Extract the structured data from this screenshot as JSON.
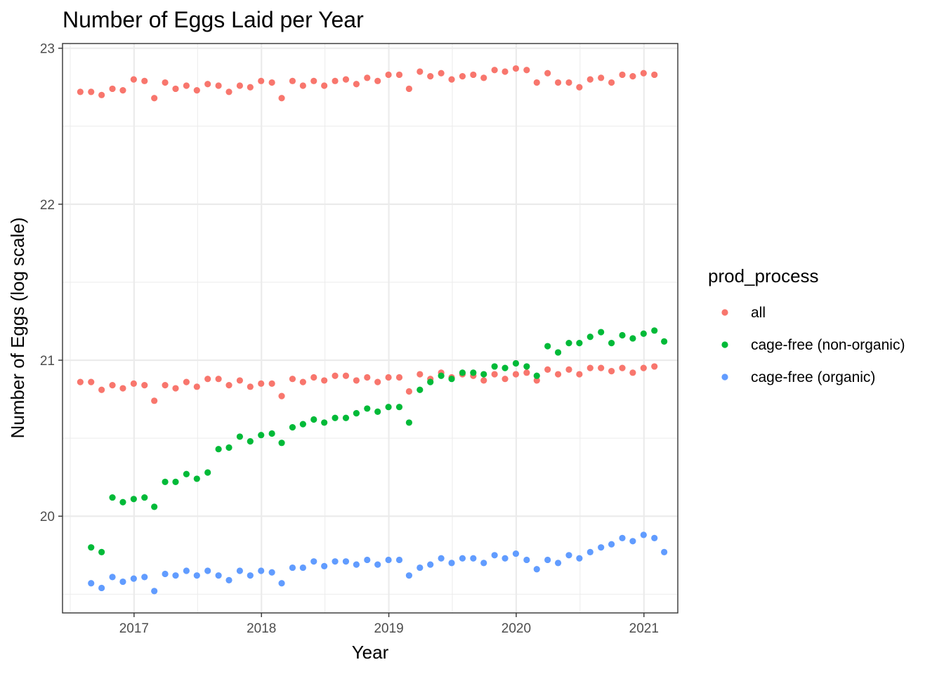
{
  "chart_data": {
    "type": "scatter",
    "title": "Number of Eggs Laid per Year",
    "xlabel": "Year",
    "ylabel": "Number of Eggs (log scale)",
    "x_ticks": [
      "2017",
      "2018",
      "2019",
      "2020",
      "2021"
    ],
    "y_ticks": [
      "20",
      "21",
      "22",
      "23"
    ],
    "xlim": [
      "2016-06-10",
      "2021-04-08"
    ],
    "ylim": [
      19.38,
      23.03
    ],
    "grid": true,
    "legend": {
      "title": "prod_process",
      "position": "right",
      "entries": [
        "all",
        "cage-free (non-organic)",
        "cage-free (organic)"
      ]
    },
    "series": [
      {
        "name": "all",
        "color": "#F8766D",
        "points": [
          [
            "2016-07-31",
            22.72
          ],
          [
            "2016-08-31",
            22.72
          ],
          [
            "2016-09-30",
            22.7
          ],
          [
            "2016-10-31",
            22.74
          ],
          [
            "2016-11-30",
            22.73
          ],
          [
            "2016-12-31",
            22.8
          ],
          [
            "2017-01-31",
            22.79
          ],
          [
            "2017-02-28",
            22.68
          ],
          [
            "2017-03-31",
            22.78
          ],
          [
            "2017-04-30",
            22.74
          ],
          [
            "2017-05-31",
            22.76
          ],
          [
            "2017-06-30",
            22.73
          ],
          [
            "2017-07-31",
            22.77
          ],
          [
            "2017-08-31",
            22.76
          ],
          [
            "2017-09-30",
            22.72
          ],
          [
            "2017-10-31",
            22.76
          ],
          [
            "2017-11-30",
            22.75
          ],
          [
            "2017-12-31",
            22.79
          ],
          [
            "2018-01-31",
            22.78
          ],
          [
            "2018-02-28",
            22.68
          ],
          [
            "2018-03-31",
            22.79
          ],
          [
            "2018-04-30",
            22.76
          ],
          [
            "2018-05-31",
            22.79
          ],
          [
            "2018-06-30",
            22.76
          ],
          [
            "2018-07-31",
            22.79
          ],
          [
            "2018-08-31",
            22.8
          ],
          [
            "2018-09-30",
            22.77
          ],
          [
            "2018-10-31",
            22.81
          ],
          [
            "2018-11-30",
            22.79
          ],
          [
            "2018-12-31",
            22.83
          ],
          [
            "2019-01-31",
            22.83
          ],
          [
            "2019-02-28",
            22.74
          ],
          [
            "2019-03-31",
            22.85
          ],
          [
            "2019-04-30",
            22.82
          ],
          [
            "2019-05-31",
            22.84
          ],
          [
            "2019-06-30",
            22.8
          ],
          [
            "2019-07-31",
            22.82
          ],
          [
            "2019-08-31",
            22.83
          ],
          [
            "2019-09-30",
            22.81
          ],
          [
            "2019-10-31",
            22.86
          ],
          [
            "2019-11-30",
            22.85
          ],
          [
            "2019-12-31",
            22.87
          ],
          [
            "2020-01-31",
            22.86
          ],
          [
            "2020-02-29",
            22.78
          ],
          [
            "2020-03-31",
            22.84
          ],
          [
            "2020-04-30",
            22.78
          ],
          [
            "2020-05-31",
            22.78
          ],
          [
            "2020-06-30",
            22.75
          ],
          [
            "2020-07-31",
            22.8
          ],
          [
            "2020-08-31",
            22.81
          ],
          [
            "2020-09-30",
            22.78
          ],
          [
            "2020-10-31",
            22.83
          ],
          [
            "2020-11-30",
            22.82
          ],
          [
            "2020-12-31",
            22.84
          ],
          [
            "2021-01-31",
            22.83
          ],
          [
            "2016-07-31",
            20.86
          ],
          [
            "2016-08-31",
            20.86
          ],
          [
            "2016-09-30",
            20.81
          ],
          [
            "2016-10-31",
            20.84
          ],
          [
            "2016-11-30",
            20.82
          ],
          [
            "2016-12-31",
            20.85
          ],
          [
            "2017-01-31",
            20.84
          ],
          [
            "2017-02-28",
            20.74
          ],
          [
            "2017-03-31",
            20.84
          ],
          [
            "2017-04-30",
            20.82
          ],
          [
            "2017-05-31",
            20.86
          ],
          [
            "2017-06-30",
            20.83
          ],
          [
            "2017-07-31",
            20.88
          ],
          [
            "2017-08-31",
            20.88
          ],
          [
            "2017-09-30",
            20.84
          ],
          [
            "2017-10-31",
            20.87
          ],
          [
            "2017-11-30",
            20.83
          ],
          [
            "2017-12-31",
            20.85
          ],
          [
            "2018-01-31",
            20.85
          ],
          [
            "2018-02-28",
            20.77
          ],
          [
            "2018-03-31",
            20.88
          ],
          [
            "2018-04-30",
            20.86
          ],
          [
            "2018-05-31",
            20.89
          ],
          [
            "2018-06-30",
            20.87
          ],
          [
            "2018-07-31",
            20.9
          ],
          [
            "2018-08-31",
            20.9
          ],
          [
            "2018-09-30",
            20.87
          ],
          [
            "2018-10-31",
            20.89
          ],
          [
            "2018-11-30",
            20.86
          ],
          [
            "2018-12-31",
            20.89
          ],
          [
            "2019-01-31",
            20.89
          ],
          [
            "2019-02-28",
            20.8
          ],
          [
            "2019-03-31",
            20.91
          ],
          [
            "2019-04-30",
            20.88
          ],
          [
            "2019-05-31",
            20.92
          ],
          [
            "2019-06-30",
            20.89
          ],
          [
            "2019-07-31",
            20.91
          ],
          [
            "2019-08-31",
            20.9
          ],
          [
            "2019-09-30",
            20.87
          ],
          [
            "2019-10-31",
            20.91
          ],
          [
            "2019-11-30",
            20.88
          ],
          [
            "2019-12-31",
            20.91
          ],
          [
            "2020-01-31",
            20.92
          ],
          [
            "2020-02-29",
            20.87
          ],
          [
            "2020-03-31",
            20.94
          ],
          [
            "2020-04-30",
            20.91
          ],
          [
            "2020-05-31",
            20.94
          ],
          [
            "2020-06-30",
            20.91
          ],
          [
            "2020-07-31",
            20.95
          ],
          [
            "2020-08-31",
            20.95
          ],
          [
            "2020-09-30",
            20.93
          ],
          [
            "2020-10-31",
            20.95
          ],
          [
            "2020-11-30",
            20.92
          ],
          [
            "2020-12-31",
            20.95
          ],
          [
            "2021-01-31",
            20.96
          ]
        ]
      },
      {
        "name": "cage-free (non-organic)",
        "color": "#00BA38",
        "points": [
          [
            "2016-08-31",
            19.8
          ],
          [
            "2016-09-30",
            19.77
          ],
          [
            "2016-10-31",
            20.12
          ],
          [
            "2016-11-30",
            20.09
          ],
          [
            "2016-12-31",
            20.11
          ],
          [
            "2017-01-31",
            20.12
          ],
          [
            "2017-02-28",
            20.06
          ],
          [
            "2017-03-31",
            20.22
          ],
          [
            "2017-04-30",
            20.22
          ],
          [
            "2017-05-31",
            20.27
          ],
          [
            "2017-06-30",
            20.24
          ],
          [
            "2017-07-31",
            20.28
          ],
          [
            "2017-08-31",
            20.43
          ],
          [
            "2017-09-30",
            20.44
          ],
          [
            "2017-10-31",
            20.51
          ],
          [
            "2017-11-30",
            20.48
          ],
          [
            "2017-12-31",
            20.52
          ],
          [
            "2018-01-31",
            20.53
          ],
          [
            "2018-02-28",
            20.47
          ],
          [
            "2018-03-31",
            20.57
          ],
          [
            "2018-04-30",
            20.59
          ],
          [
            "2018-05-31",
            20.62
          ],
          [
            "2018-06-30",
            20.6
          ],
          [
            "2018-07-31",
            20.63
          ],
          [
            "2018-08-31",
            20.63
          ],
          [
            "2018-09-30",
            20.66
          ],
          [
            "2018-10-31",
            20.69
          ],
          [
            "2018-11-30",
            20.67
          ],
          [
            "2018-12-31",
            20.7
          ],
          [
            "2019-01-31",
            20.7
          ],
          [
            "2019-02-28",
            20.6
          ],
          [
            "2019-03-31",
            20.81
          ],
          [
            "2019-04-30",
            20.86
          ],
          [
            "2019-05-31",
            20.9
          ],
          [
            "2019-06-30",
            20.88
          ],
          [
            "2019-07-31",
            20.92
          ],
          [
            "2019-08-31",
            20.92
          ],
          [
            "2019-09-30",
            20.91
          ],
          [
            "2019-10-31",
            20.96
          ],
          [
            "2019-11-30",
            20.95
          ],
          [
            "2019-12-31",
            20.98
          ],
          [
            "2020-01-31",
            20.96
          ],
          [
            "2020-02-29",
            20.9
          ],
          [
            "2020-03-31",
            21.09
          ],
          [
            "2020-04-30",
            21.05
          ],
          [
            "2020-05-31",
            21.11
          ],
          [
            "2020-06-30",
            21.11
          ],
          [
            "2020-07-31",
            21.15
          ],
          [
            "2020-08-31",
            21.18
          ],
          [
            "2020-09-30",
            21.11
          ],
          [
            "2020-10-31",
            21.16
          ],
          [
            "2020-11-30",
            21.14
          ],
          [
            "2020-12-31",
            21.17
          ],
          [
            "2021-01-31",
            21.19
          ],
          [
            "2021-02-28",
            21.12
          ]
        ]
      },
      {
        "name": "cage-free (organic)",
        "color": "#619CFF",
        "points": [
          [
            "2016-08-31",
            19.57
          ],
          [
            "2016-09-30",
            19.54
          ],
          [
            "2016-10-31",
            19.61
          ],
          [
            "2016-11-30",
            19.58
          ],
          [
            "2016-12-31",
            19.6
          ],
          [
            "2017-01-31",
            19.61
          ],
          [
            "2017-02-28",
            19.52
          ],
          [
            "2017-03-31",
            19.63
          ],
          [
            "2017-04-30",
            19.62
          ],
          [
            "2017-05-31",
            19.65
          ],
          [
            "2017-06-30",
            19.62
          ],
          [
            "2017-07-31",
            19.65
          ],
          [
            "2017-08-31",
            19.62
          ],
          [
            "2017-09-30",
            19.59
          ],
          [
            "2017-10-31",
            19.65
          ],
          [
            "2017-11-30",
            19.62
          ],
          [
            "2017-12-31",
            19.65
          ],
          [
            "2018-01-31",
            19.64
          ],
          [
            "2018-02-28",
            19.57
          ],
          [
            "2018-03-31",
            19.67
          ],
          [
            "2018-04-30",
            19.67
          ],
          [
            "2018-05-31",
            19.71
          ],
          [
            "2018-06-30",
            19.68
          ],
          [
            "2018-07-31",
            19.71
          ],
          [
            "2018-08-31",
            19.71
          ],
          [
            "2018-09-30",
            19.69
          ],
          [
            "2018-10-31",
            19.72
          ],
          [
            "2018-11-30",
            19.69
          ],
          [
            "2018-12-31",
            19.72
          ],
          [
            "2019-01-31",
            19.72
          ],
          [
            "2019-02-28",
            19.62
          ],
          [
            "2019-03-31",
            19.67
          ],
          [
            "2019-04-30",
            19.69
          ],
          [
            "2019-05-31",
            19.73
          ],
          [
            "2019-06-30",
            19.7
          ],
          [
            "2019-07-31",
            19.73
          ],
          [
            "2019-08-31",
            19.73
          ],
          [
            "2019-09-30",
            19.7
          ],
          [
            "2019-10-31",
            19.75
          ],
          [
            "2019-11-30",
            19.73
          ],
          [
            "2019-12-31",
            19.76
          ],
          [
            "2020-01-31",
            19.72
          ],
          [
            "2020-02-29",
            19.66
          ],
          [
            "2020-03-31",
            19.72
          ],
          [
            "2020-04-30",
            19.7
          ],
          [
            "2020-05-31",
            19.75
          ],
          [
            "2020-06-30",
            19.73
          ],
          [
            "2020-07-31",
            19.77
          ],
          [
            "2020-08-31",
            19.8
          ],
          [
            "2020-09-30",
            19.82
          ],
          [
            "2020-10-31",
            19.86
          ],
          [
            "2020-11-30",
            19.84
          ],
          [
            "2020-12-31",
            19.88
          ],
          [
            "2021-01-31",
            19.86
          ],
          [
            "2021-02-28",
            19.77
          ]
        ]
      }
    ]
  }
}
